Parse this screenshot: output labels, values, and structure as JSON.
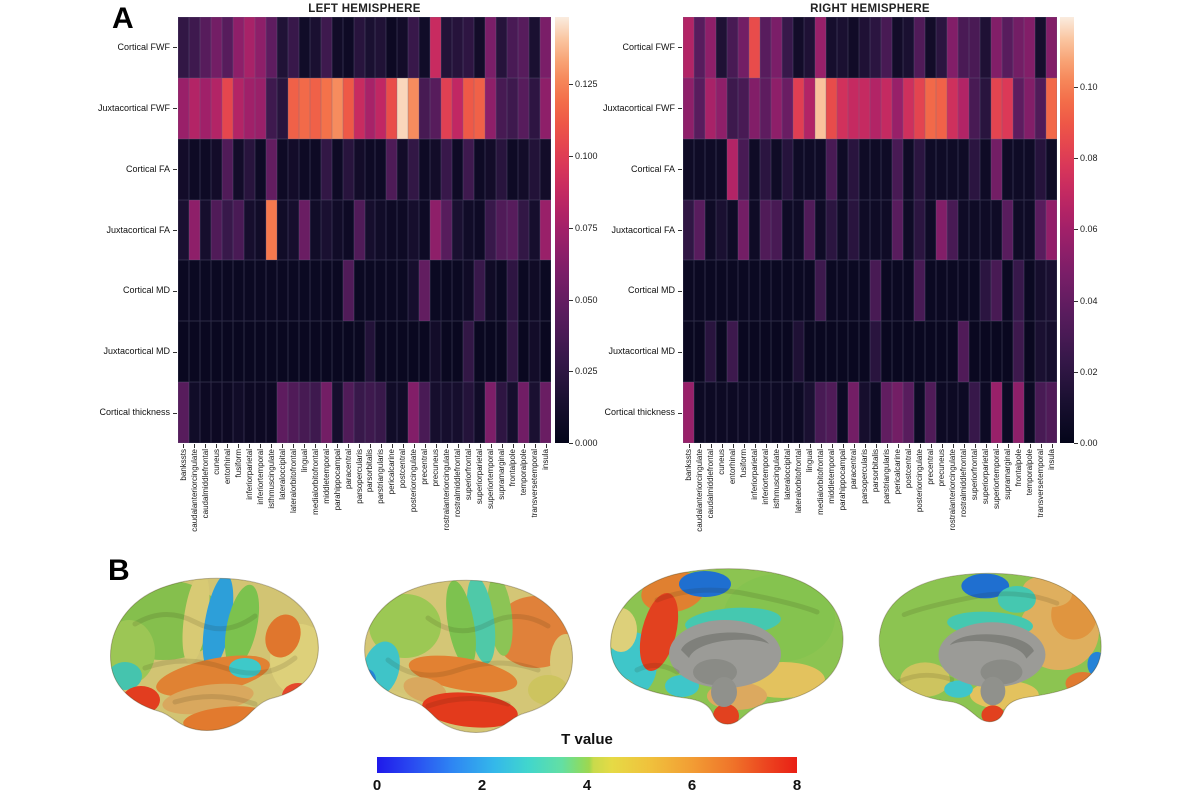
{
  "panel_a": {
    "label": "A"
  },
  "panel_b": {
    "label": "B"
  },
  "chart_data": [
    {
      "type": "heatmap",
      "title": "LEFT HEMISPHERE",
      "rows": [
        "Cortical FWF",
        "Juxtacortical FWF",
        "Cortical FA",
        "Juxtacortical FA",
        "Cortical MD",
        "Juxtacortical MD",
        "Cortical thickness"
      ],
      "columns": [
        "bankssts",
        "caudalanteriorcingulate",
        "caudalmiddlefrontal",
        "cuneus",
        "entorhinal",
        "fusiform",
        "inferiorparietal",
        "inferiortemporal",
        "isthmuscingulate",
        "lateraloccipital",
        "lateralorbitofrontal",
        "lingual",
        "medialorbitofrontal",
        "middletemporal",
        "parahippocampal",
        "paracentral",
        "parsopercularis",
        "parsorbitalis",
        "parstriangularis",
        "pericalcarine",
        "postcentral",
        "posteriorcingulate",
        "precentral",
        "precuneus",
        "rostralanteriorcingulate",
        "rostralmiddlefrontal",
        "superiorfrontal",
        "superiorparietal",
        "superiortemporal",
        "supramarginal",
        "frontalpole",
        "temporalpole",
        "transversetemporal",
        "insula"
      ],
      "vmax": 0.1485,
      "colorbar_tick_labels": [
        "0.125",
        "0.100",
        "0.075",
        "0.050",
        "0.025",
        "0.000"
      ],
      "colorbar_tick_values": [
        0.125,
        0.1,
        0.075,
        0.05,
        0.025,
        0.0
      ],
      "values": [
        [
          0.027,
          0.033,
          0.044,
          0.056,
          0.044,
          0.067,
          0.077,
          0.067,
          0.047,
          0.018,
          0.03,
          0.009,
          0.015,
          0.033,
          0.009,
          0.007,
          0.022,
          0.015,
          0.018,
          0.006,
          0.01,
          0.03,
          0.009,
          0.089,
          0.019,
          0.021,
          0.025,
          0.01,
          0.059,
          0.021,
          0.038,
          0.044,
          0.015,
          0.059
        ],
        [
          0.071,
          0.081,
          0.074,
          0.081,
          0.104,
          0.081,
          0.074,
          0.071,
          0.033,
          0.022,
          0.115,
          0.118,
          0.115,
          0.121,
          0.128,
          0.112,
          0.089,
          0.077,
          0.086,
          0.107,
          0.144,
          0.128,
          0.037,
          0.044,
          0.101,
          0.086,
          0.112,
          0.115,
          0.067,
          0.037,
          0.033,
          0.044,
          0.025,
          0.067
        ],
        [
          0.01,
          0.007,
          0.007,
          0.01,
          0.041,
          0.01,
          0.022,
          0.007,
          0.049,
          0.007,
          0.01,
          0.007,
          0.007,
          0.027,
          0.007,
          0.022,
          0.01,
          0.007,
          0.007,
          0.04,
          0.01,
          0.027,
          0.007,
          0.01,
          0.03,
          0.007,
          0.033,
          0.007,
          0.01,
          0.022,
          0.007,
          0.01,
          0.019,
          0.01
        ],
        [
          0.015,
          0.067,
          0.012,
          0.041,
          0.03,
          0.038,
          0.012,
          0.009,
          0.123,
          0.009,
          0.012,
          0.052,
          0.009,
          0.015,
          0.009,
          0.007,
          0.041,
          0.012,
          0.009,
          0.007,
          0.007,
          0.012,
          0.007,
          0.067,
          0.044,
          0.015,
          0.009,
          0.007,
          0.03,
          0.041,
          0.044,
          0.027,
          0.012,
          0.071
        ],
        [
          0.005,
          0.005,
          0.005,
          0.005,
          0.005,
          0.005,
          0.005,
          0.005,
          0.005,
          0.005,
          0.005,
          0.005,
          0.005,
          0.005,
          0.005,
          0.041,
          0.005,
          0.005,
          0.005,
          0.005,
          0.005,
          0.012,
          0.049,
          0.005,
          0.005,
          0.005,
          0.008,
          0.03,
          0.008,
          0.005,
          0.025,
          0.005,
          0.008,
          0.005
        ],
        [
          0.004,
          0.004,
          0.004,
          0.004,
          0.004,
          0.004,
          0.004,
          0.004,
          0.004,
          0.004,
          0.004,
          0.004,
          0.004,
          0.004,
          0.004,
          0.004,
          0.004,
          0.019,
          0.004,
          0.004,
          0.004,
          0.004,
          0.004,
          0.01,
          0.004,
          0.004,
          0.027,
          0.004,
          0.004,
          0.004,
          0.027,
          0.004,
          0.01,
          0.004
        ],
        [
          0.044,
          0.009,
          0.006,
          0.006,
          0.006,
          0.009,
          0.006,
          0.006,
          0.006,
          0.047,
          0.041,
          0.037,
          0.033,
          0.056,
          0.012,
          0.041,
          0.03,
          0.033,
          0.03,
          0.009,
          0.009,
          0.062,
          0.038,
          0.012,
          0.012,
          0.012,
          0.02,
          0.009,
          0.06,
          0.025,
          0.012,
          0.055,
          0.015,
          0.052
        ]
      ]
    },
    {
      "type": "heatmap",
      "title": "RIGHT HEMISPHERE",
      "rows": [
        "Cortical FWF",
        "Juxtacortical FWF",
        "Cortical FA",
        "Juxtacortical FA",
        "Cortical MD",
        "Juxtacortical MD",
        "Cortical thickness"
      ],
      "columns": [
        "bankssts",
        "caudalanteriorcingulate",
        "caudalmiddlefrontal",
        "cuneus",
        "entorhinal",
        "fusiform",
        "inferiorparietal",
        "inferiortemporal",
        "isthmuscingulate",
        "lateraloccipital",
        "lateralorbitofrontal",
        "lingual",
        "medialorbitofrontal",
        "middletemporal",
        "parahippocampal",
        "paracentral",
        "parsopercularis",
        "parsorbitalis",
        "parstriangularis",
        "pericalcarine",
        "postcentral",
        "posteriorcingulate",
        "precentral",
        "precuneus",
        "rostralanteriorcingulate",
        "rostralmiddlefrontal",
        "superiorfrontal",
        "superiorparietal",
        "superiortemporal",
        "supramarginal",
        "frontalpole",
        "temporalpole",
        "transversetemporal",
        "insula"
      ],
      "vmax": 0.1197,
      "colorbar_tick_labels": [
        "0.10",
        "0.08",
        "0.06",
        "0.04",
        "0.02",
        "0.00"
      ],
      "colorbar_tick_values": [
        0.1,
        0.08,
        0.06,
        0.04,
        0.02,
        0.0
      ],
      "values": [
        [
          0.065,
          0.036,
          0.054,
          0.014,
          0.03,
          0.045,
          0.086,
          0.036,
          0.048,
          0.024,
          0.008,
          0.014,
          0.057,
          0.01,
          0.012,
          0.007,
          0.014,
          0.019,
          0.03,
          0.008,
          0.012,
          0.033,
          0.008,
          0.019,
          0.05,
          0.031,
          0.031,
          0.014,
          0.05,
          0.036,
          0.045,
          0.05,
          0.01,
          0.05
        ],
        [
          0.054,
          0.036,
          0.062,
          0.054,
          0.026,
          0.03,
          0.05,
          0.038,
          0.054,
          0.042,
          0.081,
          0.065,
          0.113,
          0.086,
          0.075,
          0.071,
          0.071,
          0.065,
          0.071,
          0.057,
          0.074,
          0.083,
          0.095,
          0.093,
          0.074,
          0.065,
          0.03,
          0.018,
          0.083,
          0.079,
          0.038,
          0.05,
          0.033,
          0.095
        ],
        [
          0.006,
          0.006,
          0.006,
          0.006,
          0.065,
          0.03,
          0.006,
          0.019,
          0.006,
          0.017,
          0.006,
          0.006,
          0.006,
          0.03,
          0.006,
          0.018,
          0.006,
          0.006,
          0.006,
          0.03,
          0.006,
          0.019,
          0.006,
          0.006,
          0.006,
          0.006,
          0.019,
          0.006,
          0.045,
          0.006,
          0.006,
          0.006,
          0.017,
          0.006
        ],
        [
          0.021,
          0.036,
          0.006,
          0.012,
          0.006,
          0.045,
          0.006,
          0.033,
          0.03,
          0.006,
          0.006,
          0.033,
          0.006,
          0.019,
          0.006,
          0.018,
          0.006,
          0.006,
          0.006,
          0.036,
          0.006,
          0.019,
          0.006,
          0.05,
          0.03,
          0.006,
          0.006,
          0.006,
          0.006,
          0.036,
          0.006,
          0.006,
          0.036,
          0.055
        ],
        [
          0.004,
          0.004,
          0.004,
          0.004,
          0.004,
          0.004,
          0.004,
          0.004,
          0.004,
          0.004,
          0.004,
          0.004,
          0.026,
          0.004,
          0.004,
          0.004,
          0.004,
          0.03,
          0.004,
          0.004,
          0.004,
          0.03,
          0.004,
          0.004,
          0.004,
          0.004,
          0.004,
          0.019,
          0.03,
          0.004,
          0.024,
          0.004,
          0.01,
          0.012
        ],
        [
          0.003,
          0.003,
          0.018,
          0.003,
          0.026,
          0.003,
          0.003,
          0.003,
          0.003,
          0.003,
          0.014,
          0.003,
          0.003,
          0.003,
          0.003,
          0.003,
          0.003,
          0.018,
          0.003,
          0.003,
          0.003,
          0.003,
          0.003,
          0.003,
          0.003,
          0.033,
          0.003,
          0.003,
          0.003,
          0.003,
          0.026,
          0.003,
          0.012,
          0.01
        ],
        [
          0.057,
          0.005,
          0.005,
          0.005,
          0.005,
          0.005,
          0.005,
          0.005,
          0.005,
          0.005,
          0.005,
          0.012,
          0.03,
          0.033,
          0.005,
          0.045,
          0.01,
          0.005,
          0.039,
          0.045,
          0.036,
          0.005,
          0.033,
          0.005,
          0.005,
          0.005,
          0.024,
          0.005,
          0.057,
          0.005,
          0.054,
          0.005,
          0.03,
          0.033
        ]
      ]
    },
    {
      "type": "colorbar",
      "title": "T value",
      "range": [
        0,
        8
      ],
      "ticks": [
        "0",
        "2",
        "4",
        "6",
        "8"
      ],
      "tick_values": [
        0,
        2,
        4,
        6,
        8
      ]
    }
  ]
}
